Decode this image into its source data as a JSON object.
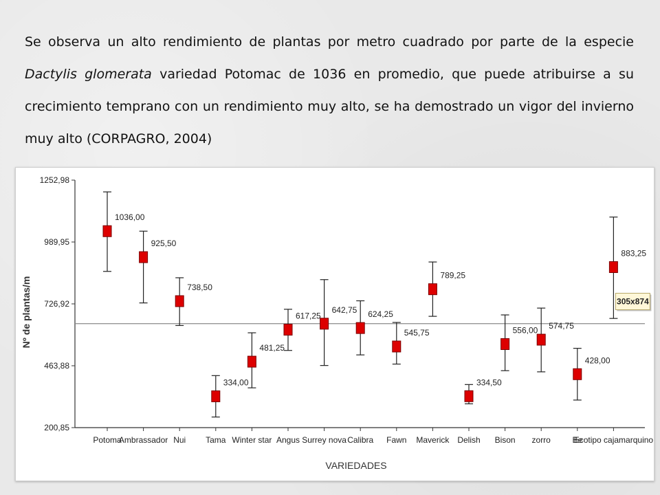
{
  "paragraph": {
    "part1": "Se observa un alto rendimiento de plantas por metro cuadrado por parte de la especie ",
    "species": "Dactylis glomerata",
    "part2": " variedad Potomac de 1036 en promedio, que puede atribuirse a su crecimiento temprano con un rendimiento muy alto, se ha demostrado un vigor del invierno muy alto (CORPAGRO, 2004)"
  },
  "chart_data": {
    "type": "errorbar",
    "xlabel": "VARIEDADES",
    "ylabel": "Nº de plantas/m",
    "ylim": [
      200.85,
      1252.98
    ],
    "yticks": [
      "200,85",
      "463,88",
      "726,92",
      "989,95",
      "1252,98"
    ],
    "ytick_values": [
      200.85,
      463.88,
      726.92,
      989.95,
      1252.98
    ],
    "reference_line": 643,
    "categories": [
      "Potoma",
      "Ambrassador",
      "Nui",
      "Tama",
      "Winter star",
      "Angus",
      "Surrey nova",
      "Calibra",
      "Fawn",
      "Maverick",
      "Delish",
      "Bison",
      "zorro",
      "Be",
      "Ecotipo cajamarquino"
    ],
    "means": [
      1036.0,
      925.5,
      738.5,
      334.0,
      481.25,
      617.25,
      642.75,
      624.25,
      545.75,
      789.25,
      334.5,
      556.0,
      574.75,
      428.0,
      883.25
    ],
    "value_labels": [
      "1036,00",
      "925,50",
      "738,50",
      "334,00",
      "481,25",
      "617,25",
      "642,75",
      "624,25",
      "545,75",
      "789,25",
      "334,50",
      "556,00",
      "574,75",
      "428,00",
      "883,25"
    ],
    "upper": [
      1203,
      1036,
      838,
      422,
      604,
      704,
      830,
      740,
      648,
      905,
      384,
      680,
      709,
      538,
      1096
    ],
    "lower": [
      865,
      731,
      635,
      246,
      370,
      529,
      465,
      510,
      471,
      674,
      302,
      443,
      438,
      318,
      665
    ],
    "marker_color": "#dd0000",
    "marker_edge": "#7a0000",
    "errorbar_color": "#222222",
    "grid": false,
    "tooltip": {
      "text": "305x874",
      "series_index": 14
    }
  }
}
